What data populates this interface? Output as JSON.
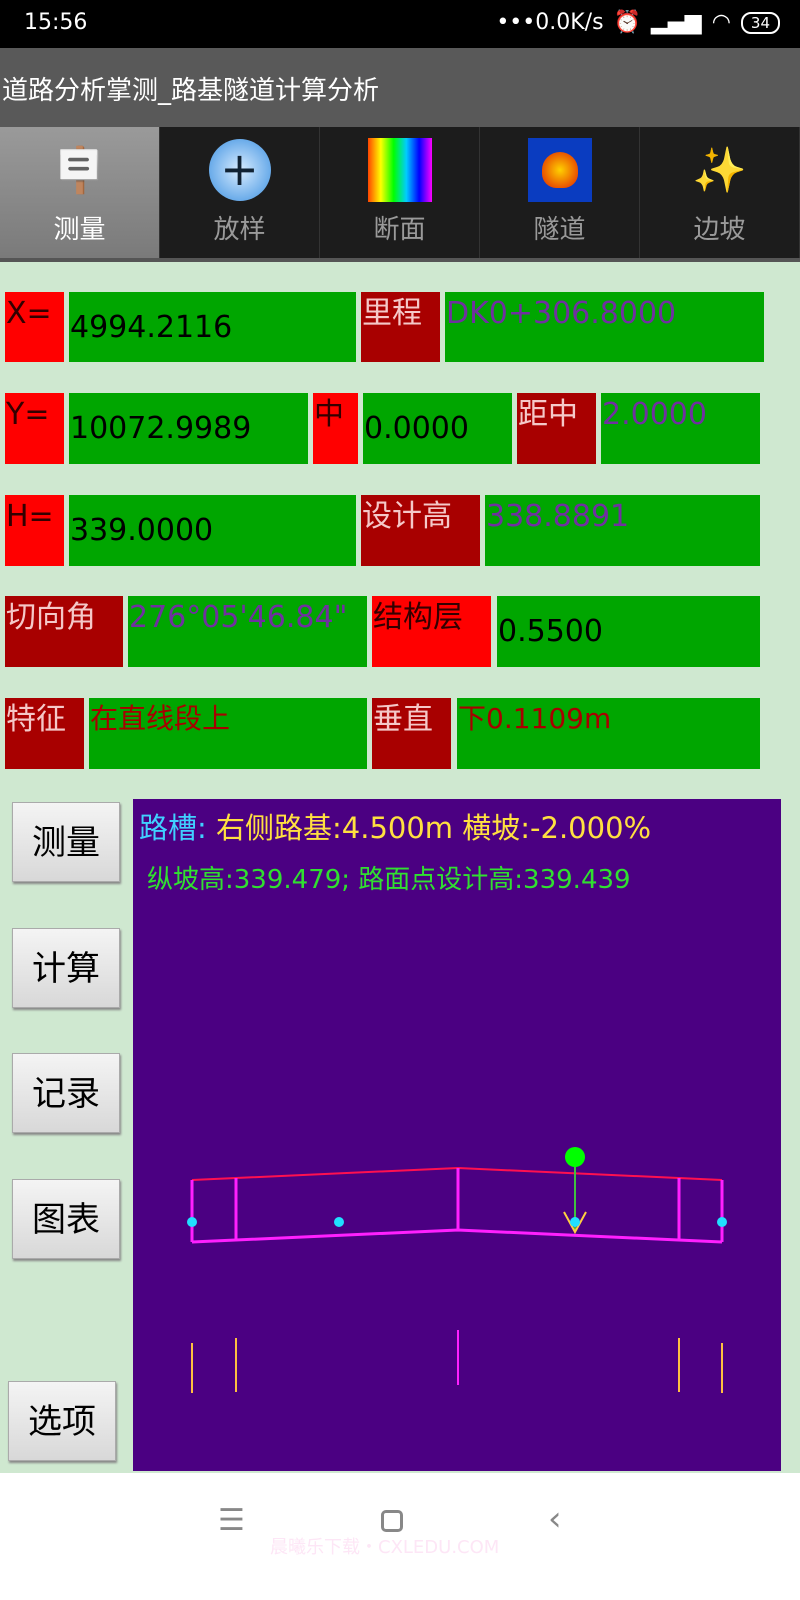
{
  "status": {
    "time": "15:56",
    "net": "•••0.0K/s",
    "battery": "34"
  },
  "title": "道路分析掌测_路基隧道计算分析",
  "tabs": [
    {
      "label": "测量",
      "icon": "signpost-icon"
    },
    {
      "label": "放样",
      "icon": "plus-circle-icon"
    },
    {
      "label": "断面",
      "icon": "color-grid-icon"
    },
    {
      "label": "隧道",
      "icon": "shell-icon"
    },
    {
      "label": "边坡",
      "icon": "magic-wand-icon"
    }
  ],
  "fields": {
    "x": {
      "label": "X=",
      "value": "4994.2116"
    },
    "mileage": {
      "label": "里程",
      "value": "DK0+306.8000"
    },
    "y": {
      "label": "Y=",
      "value": "10072.9989"
    },
    "center": {
      "label": "中",
      "value": "0.0000"
    },
    "offset": {
      "label": "距中",
      "value": "2.0000"
    },
    "h": {
      "label": "H=",
      "value": "339.0000"
    },
    "design_h": {
      "label": "设计高",
      "value": "338.8891"
    },
    "tangent": {
      "label": "切向角",
      "value": "276°05'46.84\""
    },
    "layer": {
      "label": "结构层",
      "value": "0.5500"
    },
    "feature": {
      "label": "特征",
      "value": "在直线段上"
    },
    "vertical": {
      "label": "垂直",
      "value": "下0.1109m"
    }
  },
  "buttons": {
    "measure": "测量",
    "calc": "计算",
    "record": "记录",
    "chart": "图表",
    "options": "选项"
  },
  "canvas": {
    "prefix": "路槽:",
    "line1": "右侧路基:4.500m   横坡:-2.000%",
    "line2": "纵坡高:339.479; 路面点设计高:339.439"
  },
  "watermark": "晨曦乐下载・CXLEDU.COM",
  "colors": {
    "red": "#ff0000",
    "dark_red": "#a80000",
    "green": "#00a600",
    "purple": "#4b0082",
    "value_purple": "#7030a0"
  }
}
